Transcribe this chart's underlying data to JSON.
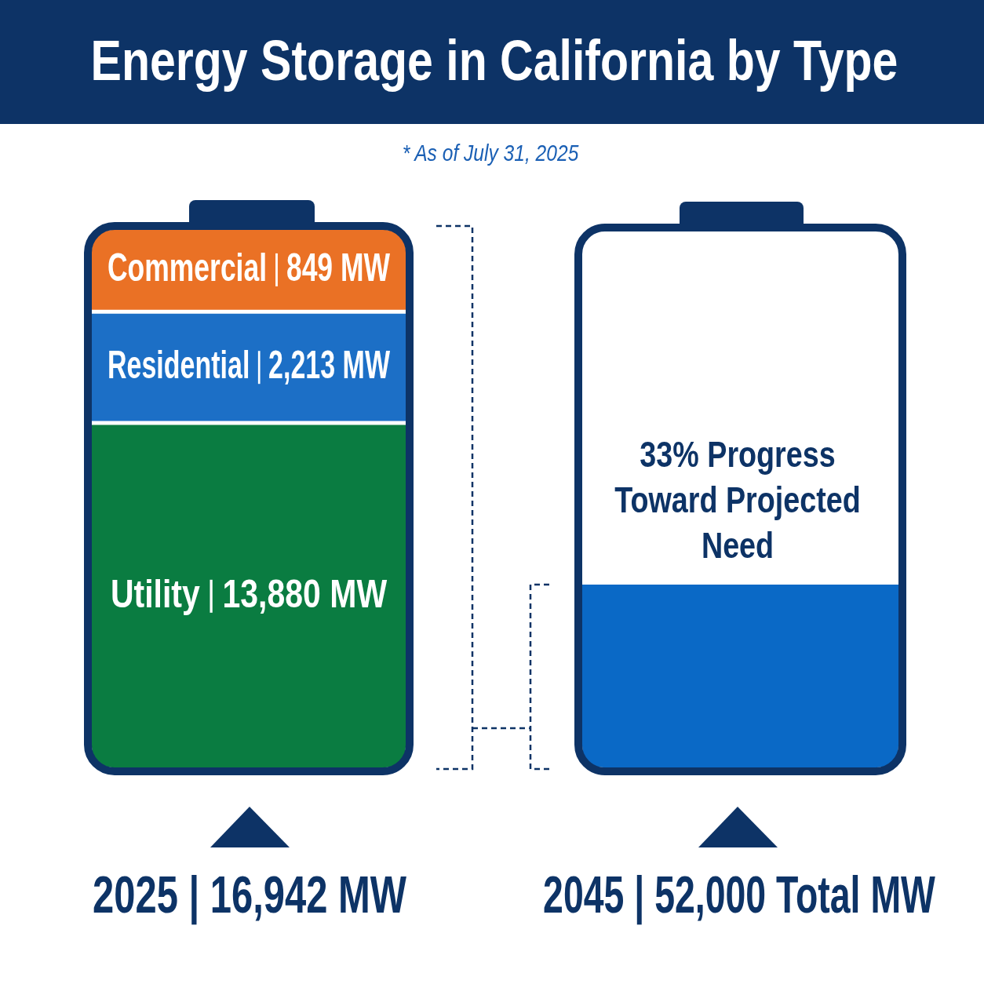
{
  "chart_data": {
    "type": "other",
    "title": "Energy Storage in California by Type",
    "subtitle": "* As of July 31, 2025",
    "categories": [
      "Commercial",
      "Residential",
      "Utility"
    ],
    "values": [
      849,
      2213,
      13880
    ],
    "value_labels": [
      "849 MW",
      "2,213 MW",
      "13,880 MW"
    ],
    "colors": [
      "#ea7125",
      "#1c6fc6",
      "#0a7c41"
    ],
    "annotations": [
      "33% Progress Toward Projected Need",
      "2025 | 16,942 MW",
      "2045 | 52,000 Total MW"
    ]
  }
}
